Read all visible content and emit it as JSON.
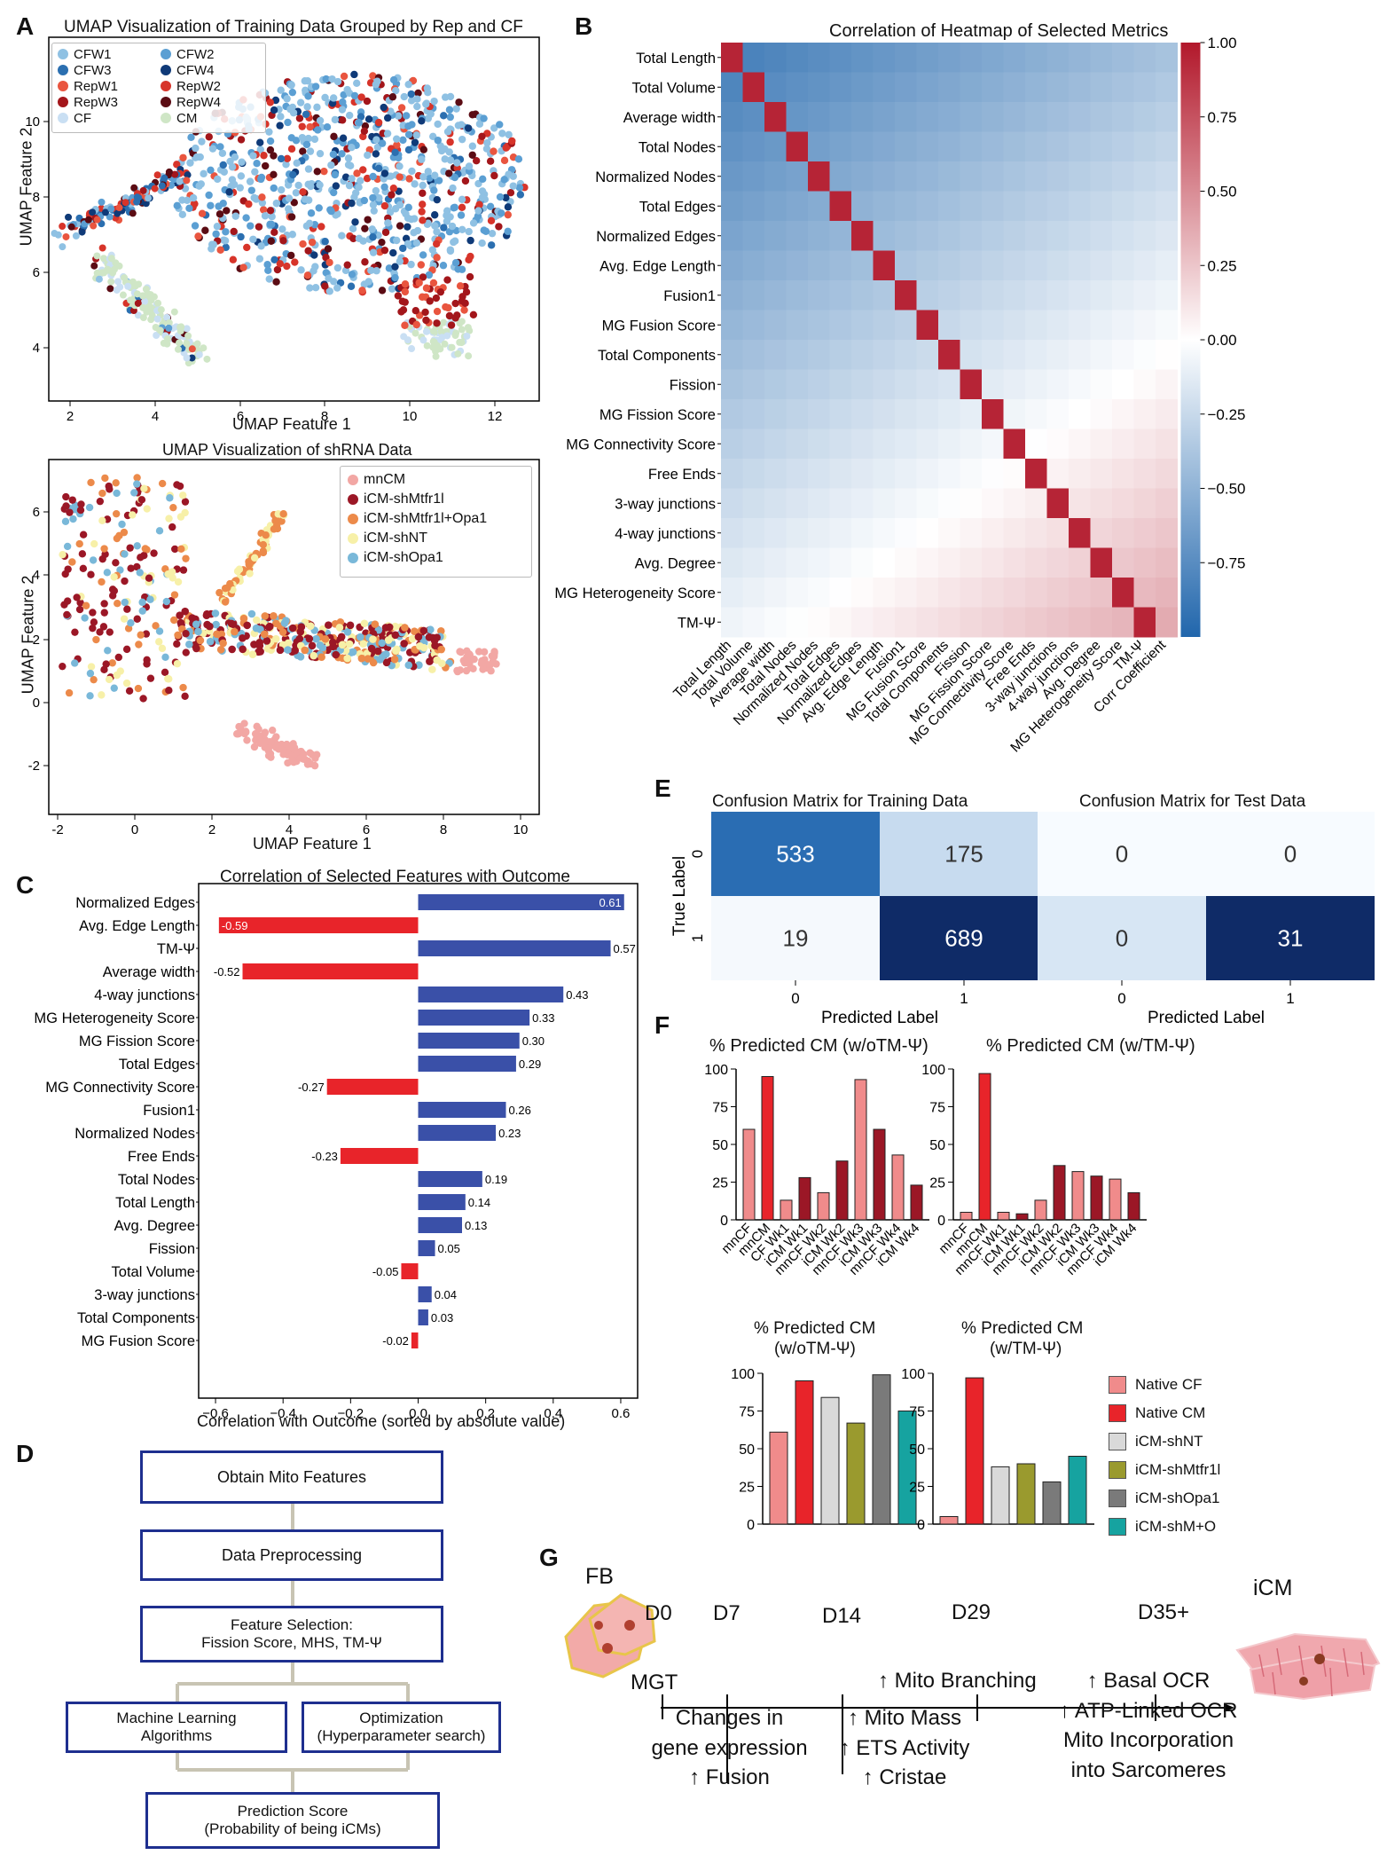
{
  "panels": {
    "A": "A",
    "B": "B",
    "C": "C",
    "D": "D",
    "E": "E",
    "F": "F",
    "G": "G"
  },
  "panelA_top": {
    "title": "UMAP Visualization of Training Data Grouped by Rep and CF",
    "xlabel": "UMAP Feature 1",
    "ylabel": "UMAP Feature 2",
    "legend": [
      {
        "name": "CFW1",
        "color": "#8fc1e3"
      },
      {
        "name": "CFW2",
        "color": "#5b9fd3"
      },
      {
        "name": "CFW3",
        "color": "#2b6fb0"
      },
      {
        "name": "CFW4",
        "color": "#0f3a78"
      },
      {
        "name": "RepW1",
        "color": "#e9553f"
      },
      {
        "name": "RepW2",
        "color": "#d7342a"
      },
      {
        "name": "RepW3",
        "color": "#a3161b"
      },
      {
        "name": "RepW4",
        "color": "#5b0c14"
      },
      {
        "name": "CF",
        "color": "#c9dff3"
      },
      {
        "name": "CM",
        "color": "#cfe6c6"
      }
    ],
    "xticks": [
      "2",
      "4",
      "6",
      "8",
      "10",
      "12"
    ],
    "yticks": [
      "4",
      "6",
      "8",
      "10"
    ]
  },
  "panelA_bottom": {
    "title": "UMAP Visualization of shRNA Data",
    "xlabel": "UMAP Feature 1",
    "ylabel": "UMAP Feature 2",
    "legend": [
      {
        "name": "mnCM",
        "color": "#f2a7a4"
      },
      {
        "name": "iCM-shMtfr1l",
        "color": "#9b1726"
      },
      {
        "name": "iCM-shMtfr1l+Opa1",
        "color": "#ec8a4a"
      },
      {
        "name": "iCM-shNT",
        "color": "#f7f0a8"
      },
      {
        "name": "iCM-shOpa1",
        "color": "#79b8d9"
      }
    ],
    "xticks": [
      "-2",
      "0",
      "2",
      "4",
      "6",
      "8",
      "10"
    ],
    "yticks": [
      "-2",
      "0",
      "2",
      "4",
      "6"
    ]
  },
  "panelB": {
    "title": "Correlation of Heatmap of Selected Metrics",
    "rows": [
      "Total Length",
      "Total Volume",
      "Average width",
      "Total Nodes",
      "Normalized Nodes",
      "Total Edges",
      "Normalized Edges",
      "Avg. Edge Length",
      "Fusion1",
      "MG Fusion Score",
      "Total Components",
      "Fission",
      "MG Fission Score",
      "MG Connectivity Score",
      "Free Ends",
      "3-way junctions",
      "4-way junctions",
      "Avg. Degree",
      "MG Heterogeneity Score",
      "TM-Ψ"
    ],
    "cols": [
      "Total Length",
      "Total Volume",
      "Average width",
      "Total Nodes",
      "Normalized Nodes",
      "Total Edges",
      "Normalized Edges",
      "Avg. Edge Length",
      "Fusion1",
      "MG Fusion Score",
      "Total Components",
      "Fission",
      "MG Fission Score",
      "MG Connectivity Score",
      "Free Ends",
      "3-way junctions",
      "4-way junctions",
      "Avg. Degree",
      "MG Heterogeneity Score",
      "TM-Ψ",
      "Corr Coefficient"
    ],
    "colorbar_ticks": [
      "1.00",
      "0.75",
      "0.50",
      "0.25",
      "0.00",
      "−0.25",
      "−0.50",
      "−0.75"
    ]
  },
  "chart_data": [
    {
      "type": "bar",
      "title": "Correlation of Selected Features with Outcome",
      "xlabel": "Correlation with Outcome (sorted by absolute value)",
      "xlim": [
        -0.65,
        0.65
      ],
      "xticks": [
        "−0.6",
        "−0.4",
        "−0.2",
        "0.0",
        "0.2",
        "0.4",
        "0.6"
      ],
      "categories": [
        "Normalized Edges",
        "Avg. Edge Length",
        "TM-Ψ",
        "Average width",
        "4-way junctions",
        "MG Heterogeneity Score",
        "MG Fission Score",
        "Total Edges",
        "MG Connectivity Score",
        "Fusion1",
        "Normalized Nodes",
        "Free Ends",
        "Total Nodes",
        "Total Length",
        "Avg. Degree",
        "Fission",
        "Total Volume",
        "3-way junctions",
        "Total Components",
        "MG Fusion Score"
      ],
      "values": [
        0.61,
        -0.59,
        0.57,
        -0.52,
        0.43,
        0.33,
        0.3,
        0.29,
        -0.27,
        0.26,
        0.23,
        -0.23,
        0.19,
        0.14,
        0.13,
        0.05,
        -0.05,
        0.04,
        0.03,
        -0.02
      ],
      "labels": [
        "0.61",
        "-0.59",
        "0.57",
        "-0.52",
        "0.43",
        "0.33",
        "0.30",
        "0.29",
        "-0.27",
        "0.26",
        "0.23",
        "-0.23",
        "0.19",
        "0.14",
        "0.13",
        "0.05",
        "-0.05",
        "0.04",
        "0.03",
        "-0.02"
      ],
      "colors": {
        "positive": "#3a50a8",
        "negative": "#e8242a"
      }
    },
    {
      "type": "heatmap",
      "title": "Confusion Matrix for Training Data",
      "xlabel": "Predicted Label",
      "ylabel": "True Label",
      "ticks": [
        "0",
        "1"
      ],
      "values": [
        [
          533,
          175
        ],
        [
          19,
          689
        ]
      ]
    },
    {
      "type": "heatmap",
      "title": "Confusion Matrix for Test Data",
      "xlabel": "Predicted Label",
      "ylabel": "",
      "ticks": [
        "0",
        "1"
      ],
      "values": [
        [
          0,
          0
        ],
        [
          0,
          31
        ]
      ]
    },
    {
      "type": "bar",
      "title": "% Predicted CM (w/oTM-Ψ)",
      "categories": [
        "mnCF",
        "mnCM",
        "CF Wk1",
        "iCM Wk1",
        "mnCF Wk2",
        "iCM Wk2",
        "mnCF Wk3",
        "iCM Wk3",
        "mnCF Wk4",
        "iCM Wk4"
      ],
      "values": [
        60,
        95,
        13,
        28,
        18,
        39,
        93,
        60,
        43,
        23
      ],
      "ylim": [
        0,
        100
      ],
      "yticks": [
        "0",
        "25",
        "50",
        "75",
        "100"
      ]
    },
    {
      "type": "bar",
      "title": "% Predicted CM (w/TM-Ψ)",
      "categories": [
        "mnCF",
        "mnCM",
        "mnCF Wk1",
        "iCM Wk1",
        "mnCF Wk2",
        "iCM Wk2",
        "mnCF Wk3",
        "iCM Wk3",
        "mnCF Wk4",
        "iCM Wk4"
      ],
      "values": [
        5,
        97,
        5,
        4,
        13,
        36,
        32,
        29,
        27,
        18
      ],
      "ylim": [
        0,
        100
      ],
      "yticks": [
        "0",
        "25",
        "50",
        "75",
        "100"
      ]
    },
    {
      "type": "bar",
      "title": "% Predicted CM",
      "subtitle": "(w/oTM-Ψ)",
      "series": [
        {
          "name": "Native CF",
          "value": 61
        },
        {
          "name": "Native CM",
          "value": 95
        },
        {
          "name": "iCM-shNT",
          "value": 84
        },
        {
          "name": "iCM-shMtfr1l",
          "value": 67
        },
        {
          "name": "iCM-shOpa1",
          "value": 99
        },
        {
          "name": "iCM-shM+O",
          "value": 75
        }
      ],
      "ylim": [
        0,
        100
      ],
      "yticks": [
        "0",
        "25",
        "50",
        "75",
        "100"
      ]
    },
    {
      "type": "bar",
      "title": "% Predicted CM",
      "subtitle": "(w/TM-Ψ)",
      "series": [
        {
          "name": "Native CF",
          "value": 5
        },
        {
          "name": "Native CM",
          "value": 97
        },
        {
          "name": "iCM-shNT",
          "value": 38
        },
        {
          "name": "iCM-shMtfr1l",
          "value": 40
        },
        {
          "name": "iCM-shOpa1",
          "value": 28
        },
        {
          "name": "iCM-shM+O",
          "value": 45
        }
      ],
      "ylim": [
        0,
        100
      ],
      "yticks": [
        "0",
        "25",
        "50",
        "75",
        "100"
      ]
    }
  ],
  "panelF_legend": [
    {
      "name": "Native CF",
      "color": "#f08b8b"
    },
    {
      "name": "Native CM",
      "color": "#e8242a"
    },
    {
      "name": "iCM-shNT",
      "color": "#d9d9d9"
    },
    {
      "name": "iCM-shMtfr1l",
      "color": "#9a9a2e"
    },
    {
      "name": "iCM-shOpa1",
      "color": "#7a7a7a"
    },
    {
      "name": "iCM-shM+O",
      "color": "#16a3a0"
    }
  ],
  "panelD": {
    "step1": "Obtain Mito Features",
    "step2": "Data Preprocessing",
    "step3a": "Feature Selection:",
    "step3b": "Fission Score, MHS, TM-Ψ",
    "step4a1": "Machine Learning",
    "step4a2": "Algorithms",
    "step4b1": "Optimization",
    "step4b2": "(Hyperparameter search)",
    "step5a": "Prediction Score",
    "step5b": "(Probability of being iCMs)"
  },
  "panelG": {
    "fb": "FB",
    "icm": "iCM",
    "days": [
      "D0",
      "D7",
      "D14",
      "D29",
      "D35+"
    ],
    "mgt": "MGT",
    "d7": [
      "Changes in",
      "gene expression",
      "↑ Fusion"
    ],
    "d14": [
      "↑ Mito Mass",
      "↑ ETS Activity",
      "↑ Cristae"
    ],
    "d29": "↑ Mito Branching",
    "d35": [
      "↑ Basal OCR",
      "↑ ATP-Linked OCR",
      "Mito Incorporation",
      "into Sarcomeres"
    ]
  }
}
